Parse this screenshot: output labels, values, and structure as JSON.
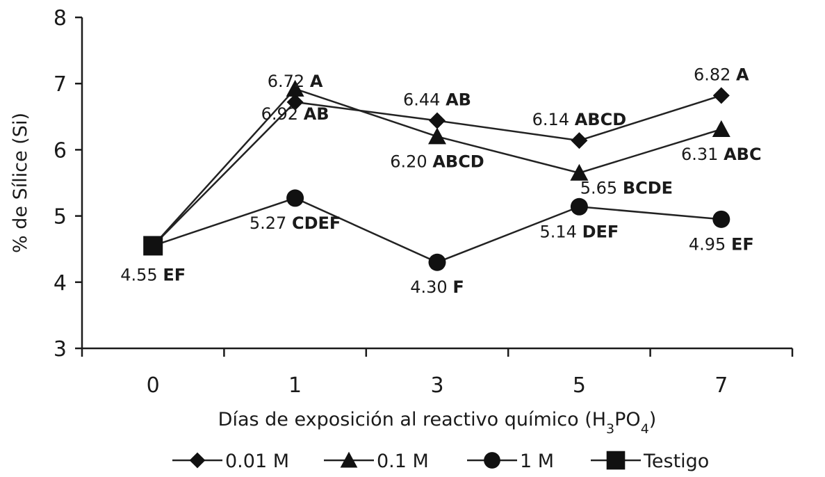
{
  "chart_data": {
    "type": "line",
    "title": "",
    "xlabel": "Días de exposición al reactivo químico (H3PO4)",
    "xlabel_parts": {
      "main": "Días de exposición al reactivo químico (H",
      "sub1": "3",
      "mid": "PO",
      "sub2": "4",
      "end": ")"
    },
    "ylabel": "% de Sílice (Si)",
    "ylim": [
      3,
      8
    ],
    "yticks": [
      3,
      4,
      5,
      6,
      7,
      8
    ],
    "categories": [
      "0",
      "1",
      "3",
      "5",
      "7"
    ],
    "legend_position": "bottom",
    "grid": false,
    "series": [
      {
        "name": "0.01 M",
        "marker": "diamond",
        "values": [
          4.55,
          6.72,
          6.44,
          6.14,
          6.82
        ],
        "labels": [
          null,
          {
            "value": "6.72",
            "group": "A",
            "pos": "above"
          },
          {
            "value": "6.44",
            "group": "AB",
            "pos": "above"
          },
          {
            "value": "6.14",
            "group": "ABCD",
            "pos": "above"
          },
          {
            "value": "6.82",
            "group": "A",
            "pos": "above"
          }
        ]
      },
      {
        "name": "0.1 M",
        "marker": "triangle",
        "values": [
          4.55,
          6.92,
          6.2,
          5.65,
          6.31
        ],
        "labels": [
          null,
          {
            "value": "6.92",
            "group": "AB",
            "pos": "below"
          },
          {
            "value": "6.20",
            "group": "ABCD",
            "pos": "below"
          },
          {
            "value": "5.65",
            "group": "BCDE",
            "pos": "below-right"
          },
          {
            "value": "6.31",
            "group": "ABC",
            "pos": "below"
          }
        ]
      },
      {
        "name": "1 M",
        "marker": "circle",
        "values": [
          4.55,
          5.27,
          4.3,
          5.14,
          4.95
        ],
        "labels": [
          null,
          {
            "value": "5.27",
            "group": "CDEF",
            "pos": "below"
          },
          {
            "value": "4.30",
            "group": "F",
            "pos": "below"
          },
          {
            "value": "5.14",
            "group": "DEF",
            "pos": "below"
          },
          {
            "value": "4.95",
            "group": "EF",
            "pos": "below"
          }
        ]
      },
      {
        "name": "Testigo",
        "marker": "square",
        "values": [
          4.55,
          null,
          null,
          null,
          null
        ],
        "labels": [
          {
            "value": "4.55",
            "group": "EF",
            "pos": "below"
          },
          null,
          null,
          null,
          null
        ]
      }
    ]
  }
}
